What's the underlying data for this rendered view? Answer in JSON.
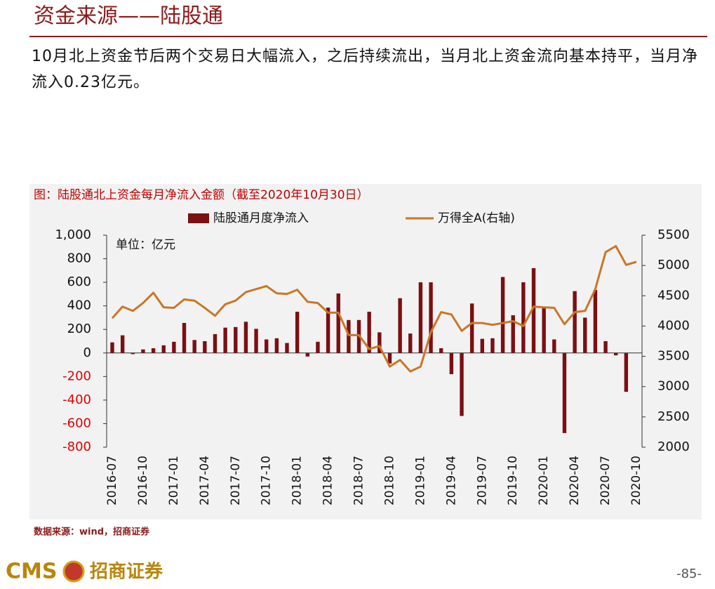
{
  "header": {
    "title": "资金来源——陆股通",
    "text": "10月北上资金节后两个交易日大幅流入，之后持续流出，当月北上资金流向基本持平，当月净流入0.23亿元。"
  },
  "chart_data": {
    "type": "bar",
    "title": "图：陆股通北上资金每月净流入金额（截至2020年10月30日）",
    "annotations": [
      "单位：亿元"
    ],
    "source": "数据来源：wind，招商证券",
    "categories": [
      "2016-07",
      null,
      null,
      "2016-10",
      null,
      null,
      "2017-01",
      null,
      null,
      "2017-04",
      null,
      null,
      "2017-07",
      null,
      null,
      "2017-10",
      null,
      null,
      "2018-01",
      null,
      null,
      "2018-04",
      null,
      null,
      "2018-07",
      null,
      null,
      "2018-10",
      null,
      null,
      "2019-01",
      null,
      null,
      "2019-04",
      null,
      null,
      "2019-07",
      null,
      null,
      "2019-10",
      null,
      null,
      "2020-01",
      null,
      null,
      "2020-04",
      null,
      null,
      "2020-07",
      null,
      null,
      "2020-10"
    ],
    "series": [
      {
        "name": "陆股通月度净流入",
        "color": "#7b0f12",
        "values": [
          90,
          150,
          -10,
          30,
          40,
          65,
          95,
          255,
          110,
          100,
          160,
          215,
          220,
          265,
          205,
          115,
          125,
          85,
          350,
          -30,
          95,
          385,
          505,
          280,
          280,
          350,
          175,
          -90,
          465,
          165,
          600,
          600,
          40,
          -180,
          -535,
          420,
          120,
          125,
          645,
          320,
          600,
          720,
          380,
          115,
          -680,
          525,
          300,
          535,
          100,
          -20,
          -330,
          0.23
        ]
      },
      {
        "name": "万得全A(右轴)",
        "type": "line",
        "axis": "y2",
        "color": "#c8772a",
        "values": [
          4130,
          4320,
          4250,
          4380,
          4550,
          4310,
          4300,
          4440,
          4420,
          4300,
          4170,
          4360,
          4420,
          4560,
          4610,
          4660,
          4540,
          4530,
          4600,
          4400,
          4380,
          4220,
          4220,
          3850,
          3850,
          3620,
          3670,
          3330,
          3440,
          3250,
          3330,
          3900,
          4230,
          4190,
          3920,
          4050,
          4050,
          4020,
          4050,
          4080,
          4000,
          4320,
          4310,
          4300,
          4030,
          4230,
          4250,
          4610,
          5220,
          5320,
          5010,
          5060
        ]
      }
    ],
    "ylim": [
      -800,
      1000
    ],
    "yticks": [
      -800,
      -600,
      -400,
      -200,
      0,
      200,
      400,
      600,
      800,
      {
        "value": 1000,
        "label": "1,000"
      }
    ],
    "y2lim": [
      2000,
      5500
    ],
    "y2ticks": [
      2000,
      2500,
      3000,
      3500,
      4000,
      4500,
      5000,
      5500
    ],
    "grid": false,
    "legend": "top"
  },
  "footer": {
    "logo": "CMS",
    "company": "招商证券",
    "page": "-85-"
  }
}
